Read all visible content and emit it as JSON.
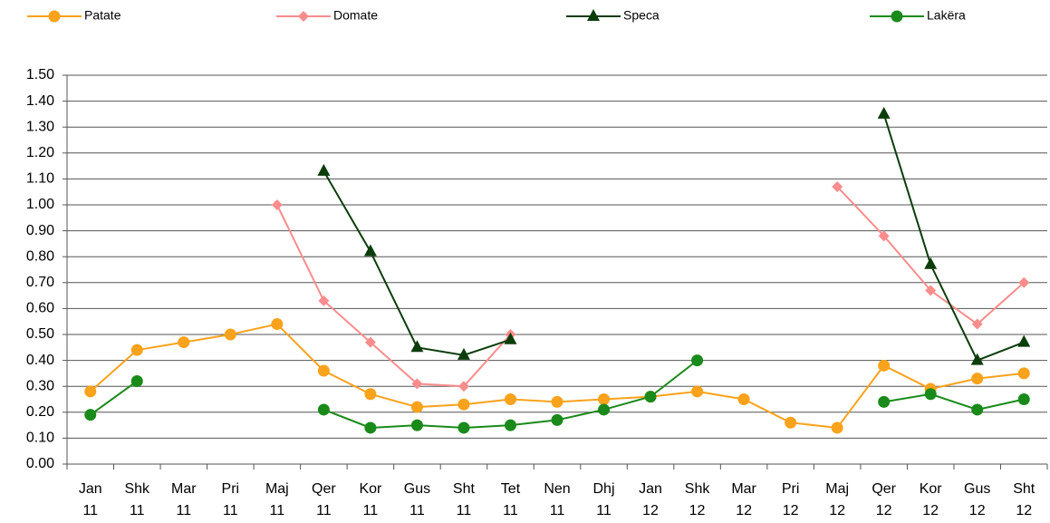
{
  "chart_data": {
    "type": "line",
    "categories": [
      "Jan 11",
      "Shk 11",
      "Mar 11",
      "Pri 11",
      "Maj 11",
      "Qer 11",
      "Kor 11",
      "Gus 11",
      "Sht 11",
      "Tet 11",
      "Nen 11",
      "Dhj 11",
      "Jan 12",
      "Shk 12",
      "Mar 12",
      "Pri 12",
      "Maj 12",
      "Qer 12",
      "Kor 12",
      "Gus 12",
      "Sht 12"
    ],
    "series": [
      {
        "name": "Patate",
        "color": "#f9a21b",
        "marker": "circle",
        "values": [
          0.28,
          0.44,
          0.47,
          0.5,
          0.54,
          0.36,
          0.27,
          0.22,
          0.23,
          0.25,
          0.24,
          0.25,
          0.26,
          0.28,
          0.25,
          0.16,
          0.14,
          0.38,
          0.29,
          0.33,
          0.35
        ]
      },
      {
        "name": "Domate",
        "color": "#f98c8c",
        "marker": "diamond",
        "values": [
          null,
          null,
          null,
          null,
          1.0,
          0.63,
          0.47,
          0.31,
          0.3,
          0.5,
          null,
          null,
          null,
          null,
          null,
          null,
          1.07,
          0.88,
          0.67,
          0.54,
          0.7
        ]
      },
      {
        "name": "Speca",
        "color": "#0b3d0b",
        "marker": "triangle",
        "values": [
          null,
          null,
          null,
          null,
          null,
          1.13,
          0.82,
          0.45,
          0.42,
          0.48,
          null,
          null,
          null,
          null,
          null,
          null,
          null,
          1.35,
          0.77,
          0.4,
          0.47
        ]
      },
      {
        "name": "Lakëra",
        "color": "#1a8a1a",
        "marker": "circle",
        "values": [
          0.19,
          0.32,
          null,
          null,
          null,
          0.21,
          0.14,
          0.15,
          0.14,
          0.15,
          0.17,
          0.21,
          0.26,
          0.4,
          null,
          null,
          null,
          0.24,
          0.27,
          0.21,
          0.25
        ]
      }
    ],
    "ylim": [
      0,
      1.5
    ],
    "yticks": [
      {
        "value": 0,
        "label": "0.00"
      },
      {
        "value": 0.1,
        "label": "0.10"
      },
      {
        "value": 0.2,
        "label": "0.20"
      },
      {
        "value": 0.3,
        "label": "0.30"
      },
      {
        "value": 0.4,
        "label": "0.40"
      },
      {
        "value": 0.5,
        "label": "0.50"
      },
      {
        "value": 0.6,
        "label": "0.60"
      },
      {
        "value": 0.7,
        "label": "0.70"
      },
      {
        "value": 0.8,
        "label": "0.80"
      },
      {
        "value": 0.9,
        "label": "0.90"
      },
      {
        "value": 1.0,
        "label": "1.00"
      },
      {
        "value": 1.1,
        "label": "1.10"
      },
      {
        "value": 1.2,
        "label": "1.20"
      },
      {
        "value": 1.3,
        "label": "1.30"
      },
      {
        "value": 1.4,
        "label": "1.40"
      },
      {
        "value": 1.5,
        "label": "1.50"
      }
    ],
    "grid": true,
    "legend": "top"
  }
}
